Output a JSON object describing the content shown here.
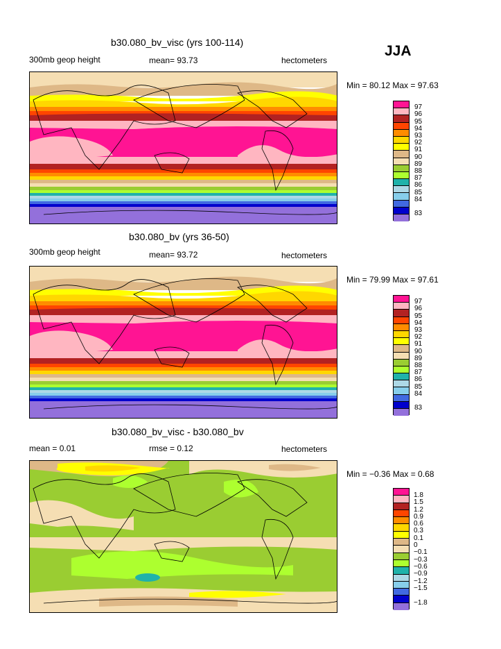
{
  "season": "JJA",
  "panels": [
    {
      "title": "b30.080_bv_visc (yrs 100-114)",
      "left_label": "300mb  geop height",
      "center_label": "mean=   93.73",
      "right_label": "hectometers",
      "minmax": "Min =   80.12  Max =   97.63",
      "legend_colors": [
        "#ff1493",
        "#ffb6c1",
        "#b22222",
        "#ff4500",
        "#ff8c00",
        "#ffd700",
        "#ffff00",
        "#deb887",
        "#f5deb3",
        "#9acd32",
        "#adff2f",
        "#20b2aa",
        "#add8e6",
        "#87ceeb",
        "#4169e1",
        "#0000cd",
        "#9370db"
      ],
      "legend_labels": [
        "97",
        "96",
        "95",
        "94",
        "93",
        "92",
        "91",
        "90",
        "89",
        "88",
        "87",
        "86",
        "85",
        "84",
        "83"
      ]
    },
    {
      "title": "b30.080_bv (yrs 36-50)",
      "left_label": "300mb  geop height",
      "center_label": "mean=   93.72",
      "right_label": "hectometers",
      "minmax": "Min =   79.99  Max =   97.61",
      "legend_colors": [
        "#ff1493",
        "#ffb6c1",
        "#b22222",
        "#ff4500",
        "#ff8c00",
        "#ffd700",
        "#ffff00",
        "#deb887",
        "#f5deb3",
        "#9acd32",
        "#adff2f",
        "#20b2aa",
        "#add8e6",
        "#87ceeb",
        "#4169e1",
        "#0000cd",
        "#9370db"
      ],
      "legend_labels": [
        "97",
        "96",
        "95",
        "94",
        "93",
        "92",
        "91",
        "90",
        "89",
        "88",
        "87",
        "86",
        "85",
        "84",
        "83"
      ]
    },
    {
      "title": "b30.080_bv_visc - b30.080_bv",
      "left_label": "mean =     0.01",
      "center_label": "rmse =     0.12",
      "right_label": "hectometers",
      "minmax": "Min =  −0.36  Max =     0.68",
      "legend_colors": [
        "#ff1493",
        "#ffb6c1",
        "#b22222",
        "#ff4500",
        "#ff8c00",
        "#ffd700",
        "#ffff00",
        "#deb887",
        "#f5deb3",
        "#9acd32",
        "#adff2f",
        "#20b2aa",
        "#add8e6",
        "#87ceeb",
        "#4169e1",
        "#0000cd",
        "#9370db"
      ],
      "legend_labels": [
        "1.8",
        "1.5",
        "1.2",
        "0.9",
        "0.6",
        "0.3",
        "0.1",
        "0",
        "−0.1",
        "−0.3",
        "−0.6",
        "−0.9",
        "−1.2",
        "−1.5",
        "−1.8"
      ]
    }
  ]
}
